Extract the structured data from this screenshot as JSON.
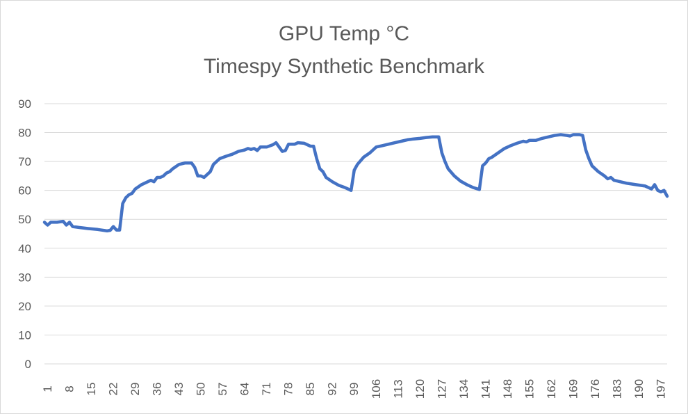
{
  "colors": {
    "series": "#4472c4",
    "gridline": "#d9d9d9",
    "text": "#595959",
    "background": "#ffffff"
  },
  "chart_data": {
    "type": "line",
    "title": "GPU Temp °C",
    "subtitle": "Timespy Synthetic Benchmark",
    "xlabel": "",
    "ylabel": "",
    "ylim": [
      0,
      90
    ],
    "yticks": [
      0,
      10,
      20,
      30,
      40,
      50,
      60,
      70,
      80,
      90
    ],
    "xlim": [
      1,
      199
    ],
    "xticks": [
      1,
      8,
      15,
      22,
      29,
      36,
      43,
      50,
      57,
      64,
      71,
      78,
      85,
      92,
      99,
      106,
      113,
      120,
      127,
      134,
      141,
      148,
      155,
      162,
      169,
      176,
      183,
      190,
      197
    ],
    "grid": true,
    "legend": "none",
    "series": [
      {
        "points": [
          [
            1,
            49
          ],
          [
            2,
            48
          ],
          [
            3,
            49
          ],
          [
            5,
            49
          ],
          [
            7,
            49.3
          ],
          [
            8,
            48
          ],
          [
            9,
            49
          ],
          [
            10,
            47.5
          ],
          [
            12,
            47.2
          ],
          [
            15,
            46.8
          ],
          [
            18,
            46.5
          ],
          [
            21,
            46
          ],
          [
            22,
            46.2
          ],
          [
            23,
            47.5
          ],
          [
            24,
            46.3
          ],
          [
            25,
            46.3
          ],
          [
            26,
            55.5
          ],
          [
            27,
            57.5
          ],
          [
            28,
            58.5
          ],
          [
            29,
            59
          ],
          [
            30,
            60.5
          ],
          [
            32,
            62
          ],
          [
            35,
            63.5
          ],
          [
            36,
            63
          ],
          [
            37,
            64.5
          ],
          [
            38,
            64.5
          ],
          [
            39,
            65
          ],
          [
            40,
            66
          ],
          [
            41,
            66.5
          ],
          [
            42,
            67.5
          ],
          [
            44,
            69
          ],
          [
            46,
            69.5
          ],
          [
            48,
            69.5
          ],
          [
            49,
            68
          ],
          [
            50,
            65
          ],
          [
            51,
            65
          ],
          [
            52,
            64.5
          ],
          [
            53,
            65.5
          ],
          [
            54,
            66.5
          ],
          [
            55,
            69
          ],
          [
            57,
            71
          ],
          [
            59,
            71.8
          ],
          [
            61,
            72.5
          ],
          [
            63,
            73.5
          ],
          [
            65,
            74
          ],
          [
            66,
            74.5
          ],
          [
            67,
            74.2
          ],
          [
            68,
            74.5
          ],
          [
            69,
            73.8
          ],
          [
            70,
            75
          ],
          [
            72,
            75
          ],
          [
            74,
            75.8
          ],
          [
            75,
            76.5
          ],
          [
            76,
            75
          ],
          [
            77,
            73.5
          ],
          [
            78,
            73.8
          ],
          [
            79,
            76
          ],
          [
            81,
            76
          ],
          [
            82,
            76.5
          ],
          [
            84,
            76.3
          ],
          [
            86,
            75.3
          ],
          [
            87,
            75.3
          ],
          [
            88,
            71
          ],
          [
            89,
            67.5
          ],
          [
            90,
            66.5
          ],
          [
            91,
            64.5
          ],
          [
            93,
            63
          ],
          [
            95,
            61.8
          ],
          [
            97,
            61
          ],
          [
            98,
            60.5
          ],
          [
            99,
            60
          ],
          [
            100,
            67
          ],
          [
            101,
            69
          ],
          [
            103,
            71.5
          ],
          [
            105,
            73
          ],
          [
            107,
            75
          ],
          [
            109,
            75.5
          ],
          [
            111,
            76
          ],
          [
            113,
            76.5
          ],
          [
            115,
            77
          ],
          [
            117,
            77.5
          ],
          [
            119,
            77.8
          ],
          [
            121,
            78
          ],
          [
            123,
            78.3
          ],
          [
            125,
            78.5
          ],
          [
            127,
            78.5
          ],
          [
            128,
            73
          ],
          [
            129,
            70
          ],
          [
            130,
            67.5
          ],
          [
            132,
            65
          ],
          [
            134,
            63.2
          ],
          [
            136,
            62
          ],
          [
            138,
            61
          ],
          [
            140,
            60.3
          ],
          [
            141,
            68.5
          ],
          [
            142,
            69.5
          ],
          [
            143,
            71
          ],
          [
            144,
            71.5
          ],
          [
            146,
            73
          ],
          [
            148,
            74.5
          ],
          [
            150,
            75.5
          ],
          [
            152,
            76.3
          ],
          [
            154,
            77
          ],
          [
            155,
            76.8
          ],
          [
            156,
            77.3
          ],
          [
            158,
            77.3
          ],
          [
            160,
            78
          ],
          [
            162,
            78.5
          ],
          [
            164,
            79
          ],
          [
            166,
            79.3
          ],
          [
            168,
            79
          ],
          [
            169,
            78.8
          ],
          [
            170,
            79.3
          ],
          [
            172,
            79.3
          ],
          [
            173,
            79
          ],
          [
            174,
            74
          ],
          [
            175,
            71
          ],
          [
            176,
            68.5
          ],
          [
            178,
            66.5
          ],
          [
            180,
            65
          ],
          [
            181,
            64
          ],
          [
            182,
            64.5
          ],
          [
            183,
            63.5
          ],
          [
            185,
            63
          ],
          [
            187,
            62.5
          ],
          [
            190,
            62
          ],
          [
            193,
            61.5
          ],
          [
            195,
            60.5
          ],
          [
            196,
            62
          ],
          [
            197,
            60
          ],
          [
            198,
            59.5
          ],
          [
            199,
            60
          ],
          [
            200,
            58
          ]
        ]
      }
    ]
  }
}
